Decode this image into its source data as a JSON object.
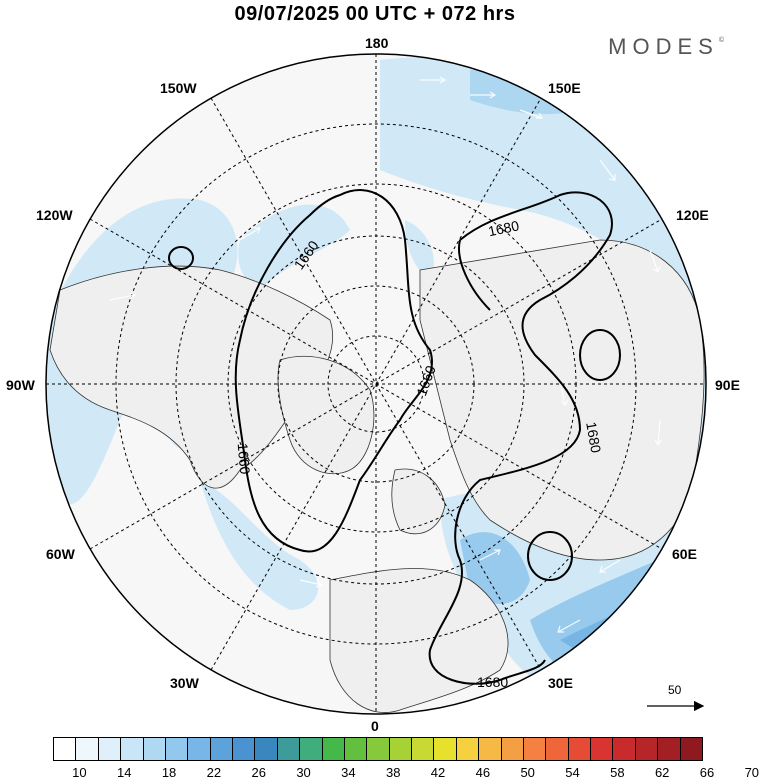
{
  "header": {
    "title": "09/07/2025  00 UTC  + 072 hrs",
    "logo": "MODES"
  },
  "map": {
    "projection": "north-polar-stereographic",
    "longitude_labels": {
      "top": "180",
      "bottom": "0",
      "left": "90W",
      "right": "90E",
      "upper_left_1": "150W",
      "upper_left_2": "120W",
      "lower_left_1": "60W",
      "lower_left_2": "30W",
      "upper_right_1": "150E",
      "upper_right_2": "120E",
      "lower_right_1": "60E",
      "lower_right_2": "30E"
    },
    "contour_labels": [
      "1660",
      "1660",
      "1660",
      "1680",
      "1680",
      "1680"
    ],
    "colors": {
      "land": "#efefef",
      "ocean": "#f7f7f7",
      "shade_light": "#cfe8f7",
      "shade_mid": "#a9d4f0",
      "shade_dark": "#6fb2e3",
      "contour": "#000000",
      "coast": "#333333"
    }
  },
  "reference_vector": {
    "label": "50"
  },
  "colorbar": {
    "colors": [
      "#ffffff",
      "#eef7fc",
      "#dff0fa",
      "#c8e6f8",
      "#afd9f3",
      "#93c8ee",
      "#77b6e6",
      "#5ca3dc",
      "#4b93d0",
      "#3a86bf",
      "#3d9b99",
      "#3fae7c",
      "#45b84a",
      "#62c03e",
      "#86c93a",
      "#a6d236",
      "#c7d932",
      "#e7e12e",
      "#f6d13f",
      "#f6b946",
      "#f59f45",
      "#f48141",
      "#ef663b",
      "#e64b35",
      "#d93431",
      "#c92a2c",
      "#b62527",
      "#a21f23",
      "#8e1a1f"
    ],
    "tick_labels": [
      "10",
      "14",
      "18",
      "22",
      "26",
      "30",
      "34",
      "38",
      "42",
      "46",
      "50",
      "54",
      "58",
      "62",
      "66",
      "70"
    ]
  }
}
